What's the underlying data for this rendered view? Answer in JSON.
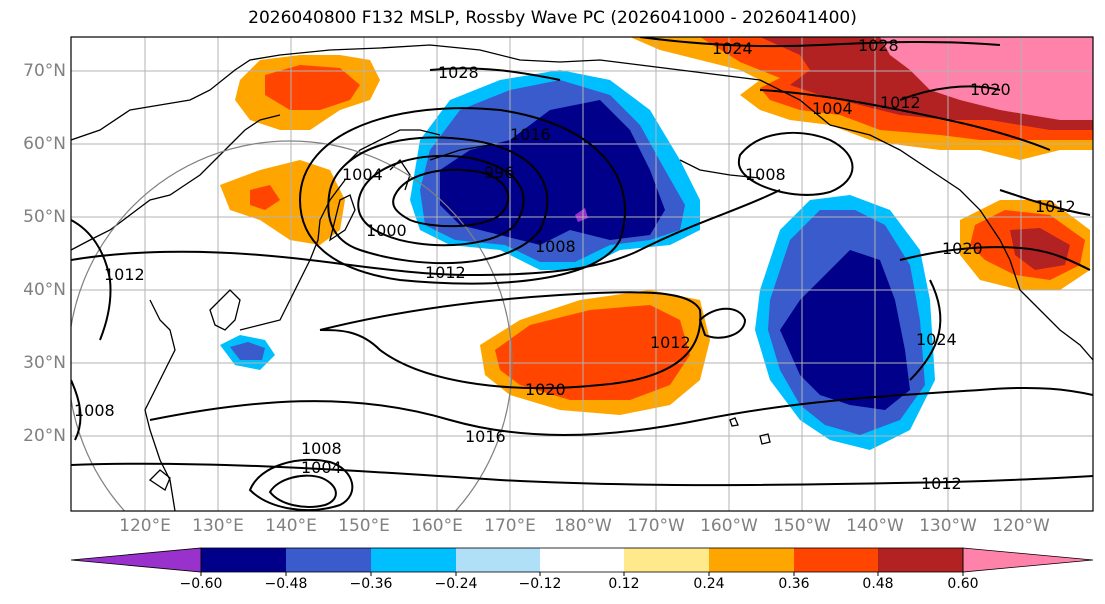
{
  "title": "2026040800 F132 MSLP, Rossby Wave PC (2026041000 - 2026041400)",
  "map": {
    "region": "North Pacific",
    "projection": "PlateCarree",
    "lon_range_label": "120°E to 120°W",
    "lat_range_label": "10°N to 75°N"
  },
  "lat_labels": [
    "70°N",
    "60°N",
    "50°N",
    "40°N",
    "30°N",
    "20°N"
  ],
  "lon_labels": [
    "120°E",
    "130°E",
    "140°E",
    "150°E",
    "160°E",
    "170°E",
    "180°W",
    "170°W",
    "160°W",
    "150°W",
    "140°W",
    "130°W",
    "120°W"
  ],
  "contour_labels": [
    "1024",
    "1028",
    "1028",
    "1016",
    "1004",
    "996",
    "1000",
    "1008",
    "1012",
    "1008",
    "1004",
    "1012",
    "1020",
    "1012",
    "1020",
    "1024",
    "1012",
    "1016",
    "1020",
    "1012",
    "1008",
    "1004",
    "1008",
    "1012"
  ],
  "colorbar": {
    "ticks": [
      "−0.60",
      "−0.48",
      "−0.36",
      "−0.24",
      "−0.12",
      "0.12",
      "0.24",
      "0.36",
      "0.48",
      "0.60"
    ],
    "colors": [
      "#9932cc",
      "#00008b",
      "#3a5bcc",
      "#00bfff",
      "#b0e0f8",
      "#ffffff",
      "#ffe98a",
      "#ffa500",
      "#ff4500",
      "#b22222",
      "#ff82ab"
    ],
    "extend": "both"
  },
  "legend_colors": {
    "neg_strong": "#00008b",
    "neg_mid": "#3a5bcc",
    "neg_weak": "#00bfff",
    "pos_weak": "#ffa500",
    "pos_mid": "#ff4500",
    "pos_strong": "#b22222",
    "pos_max": "#ff82ab"
  }
}
